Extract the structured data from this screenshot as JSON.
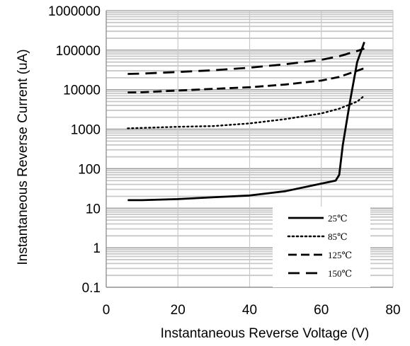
{
  "chart_data": {
    "type": "line",
    "title": "",
    "xlabel": "Instantaneous Reverse Voltage (V)",
    "ylabel": "Instantaneous Reverse Current (uA)",
    "xlim": [
      0,
      80
    ],
    "ylim": [
      0.1,
      1000000
    ],
    "yscale": "log",
    "x_ticks": [
      0,
      20,
      40,
      60,
      80
    ],
    "x_tick_labels": [
      "0",
      "20",
      "40",
      "60",
      "80"
    ],
    "y_ticks": [
      0.1,
      1,
      10,
      100,
      1000,
      10000,
      100000,
      1000000
    ],
    "y_tick_labels": [
      "0.1",
      "1",
      "10",
      "100",
      "1000",
      "10000",
      "100000",
      "1000000"
    ],
    "grid": true,
    "legend_position": "bottom-right",
    "series": [
      {
        "name": "25℃",
        "style": "solid",
        "color": "#000000",
        "x": [
          6,
          10,
          20,
          30,
          40,
          50,
          60,
          64,
          65,
          66,
          68,
          70,
          72
        ],
        "y": [
          16,
          16,
          17,
          19,
          21,
          27,
          42,
          50,
          70,
          400,
          5000,
          50000,
          160000
        ]
      },
      {
        "name": "85℃",
        "style": "dotted",
        "color": "#000000",
        "x": [
          6,
          20,
          30,
          40,
          50,
          60,
          65,
          70,
          72
        ],
        "y": [
          1050,
          1150,
          1200,
          1400,
          1800,
          2500,
          3300,
          5000,
          7000
        ]
      },
      {
        "name": "125℃",
        "style": "dashed",
        "color": "#000000",
        "x": [
          6,
          10,
          20,
          30,
          40,
          50,
          60,
          65,
          70,
          72
        ],
        "y": [
          8500,
          8600,
          9500,
          10500,
          11500,
          13500,
          17000,
          21000,
          30000,
          35000
        ]
      },
      {
        "name": "150℃",
        "style": "long-dashed",
        "color": "#000000",
        "x": [
          6,
          10,
          20,
          30,
          40,
          50,
          60,
          65,
          70,
          72
        ],
        "y": [
          25000,
          25500,
          28000,
          31000,
          36000,
          44000,
          57000,
          70000,
          95000,
          110000
        ]
      }
    ]
  }
}
